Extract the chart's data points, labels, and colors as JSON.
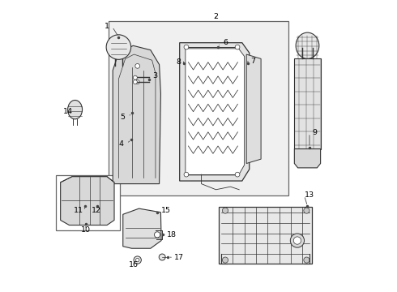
{
  "bg_color": "#ffffff",
  "line_color": "#333333",
  "fill_light": "#e8e8e8",
  "fill_mid": "#d8d8d8",
  "fill_box": "#f0f0f0",
  "box_color": "#666666"
}
